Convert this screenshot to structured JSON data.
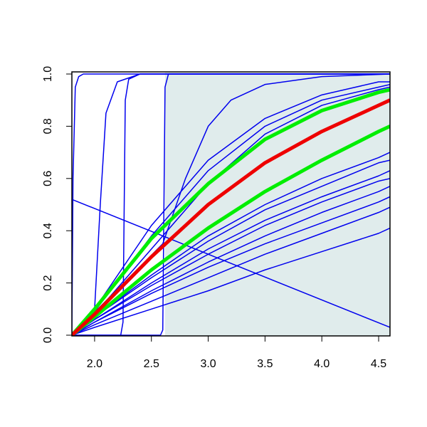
{
  "chart_data": {
    "type": "line",
    "xlim": [
      1.8,
      4.6
    ],
    "ylim": [
      0,
      1
    ],
    "xticks": [
      {
        "value": 2,
        "label": "2.0"
      },
      {
        "value": 2.5,
        "label": "2.5"
      },
      {
        "value": 3,
        "label": "3.0"
      },
      {
        "value": 3.5,
        "label": "3.5"
      },
      {
        "value": 4,
        "label": "4.0"
      },
      {
        "value": 4.5,
        "label": "4.5"
      }
    ],
    "yticks": [
      {
        "value": 0,
        "label": "0.0"
      },
      {
        "value": 0.2,
        "label": "0.2"
      },
      {
        "value": 0.4,
        "label": "0.4"
      },
      {
        "value": 0.6,
        "label": "0.6"
      },
      {
        "value": 0.8,
        "label": "0.8"
      },
      {
        "value": 1,
        "label": "1.0"
      }
    ],
    "shaded_region": [
      2.62,
      4.6
    ],
    "shade_color": "#e0ecec",
    "series": [
      {
        "color": "#0000ee",
        "width": 1.5,
        "x": [
          1.8,
          2.0,
          2.5,
          3.0,
          3.5,
          4.0,
          4.5,
          4.6
        ],
        "values": [
          0,
          0.06,
          0.2,
          0.33,
          0.44,
          0.53,
          0.61,
          0.63
        ]
      },
      {
        "color": "#0000ee",
        "width": 1.5,
        "x": [
          1.8,
          2.0,
          2.5,
          3.0,
          3.5,
          4.0,
          4.5,
          4.6
        ],
        "values": [
          0,
          0.05,
          0.17,
          0.28,
          0.38,
          0.47,
          0.55,
          0.57
        ]
      },
      {
        "color": "#0000ee",
        "width": 1.5,
        "x": [
          1.8,
          2.0,
          2.5,
          3.0,
          3.5,
          4.0,
          4.5,
          4.6
        ],
        "values": [
          0,
          0.05,
          0.16,
          0.26,
          0.35,
          0.43,
          0.51,
          0.53
        ]
      },
      {
        "color": "#0000ee",
        "width": 1.5,
        "x": [
          1.8,
          2.0,
          2.5,
          3.0,
          3.5,
          4.0,
          4.5,
          4.6
        ],
        "values": [
          0,
          0.06,
          0.19,
          0.31,
          0.42,
          0.51,
          0.59,
          0.6
        ]
      },
      {
        "color": "#0000ee",
        "width": 1.5,
        "x": [
          1.8,
          2.0,
          2.5,
          3.0,
          3.5,
          4.0,
          4.5,
          4.6
        ],
        "values": [
          0,
          0.07,
          0.22,
          0.36,
          0.48,
          0.57,
          0.66,
          0.67
        ]
      },
      {
        "color": "#0000ee",
        "width": 1.5,
        "x": [
          1.8,
          2.0,
          2.5,
          3.0,
          3.5,
          4.0,
          4.5,
          4.6
        ],
        "values": [
          0,
          0.07,
          0.23,
          0.38,
          0.5,
          0.6,
          0.68,
          0.7
        ]
      },
      {
        "color": "#0000ee",
        "width": 1.5,
        "x": [
          1.8,
          2.0,
          2.5,
          3.0,
          3.5,
          4.0,
          4.5,
          4.6
        ],
        "values": [
          0,
          0.03,
          0.1,
          0.17,
          0.25,
          0.32,
          0.39,
          0.41
        ]
      },
      {
        "color": "#0000ee",
        "width": 1.5,
        "x": [
          1.8,
          2.0,
          2.5,
          3.0,
          3.5,
          4.0,
          4.5,
          4.6
        ],
        "values": [
          0,
          0.04,
          0.13,
          0.22,
          0.31,
          0.39,
          0.47,
          0.49
        ]
      },
      {
        "color": "#0000ee",
        "width": 1.5,
        "x": [
          1.8,
          2.0,
          2.5,
          3.0,
          3.5,
          4.0,
          4.5,
          4.6
        ],
        "values": [
          0,
          0.1,
          0.42,
          0.67,
          0.83,
          0.92,
          0.97,
          0.97
        ]
      },
      {
        "color": "#0000ee",
        "width": 1.5,
        "x": [
          1.8,
          2.0,
          2.5,
          3.0,
          3.5,
          4.0,
          4.5,
          4.6
        ],
        "values": [
          0,
          0.09,
          0.38,
          0.63,
          0.8,
          0.9,
          0.95,
          0.96
        ]
      },
      {
        "color": "#0000ee",
        "width": 1.5,
        "x": [
          1.8,
          2.0,
          2.5,
          3.0,
          3.5,
          4.0,
          4.5,
          4.6
        ],
        "values": [
          0,
          0.08,
          0.33,
          0.58,
          0.77,
          0.88,
          0.94,
          0.95
        ]
      },
      {
        "color": "#0000ee",
        "width": 1.5,
        "x": [
          1.8,
          1.81,
          1.83,
          1.86,
          1.9,
          2.0,
          2.5,
          4.6
        ],
        "values": [
          0,
          0.6,
          0.95,
          0.99,
          1,
          1,
          1,
          1
        ]
      },
      {
        "color": "#0000ee",
        "width": 1.5,
        "x": [
          1.8,
          2.0,
          2.05,
          2.1,
          2.2,
          2.4,
          4.6
        ],
        "values": [
          0,
          0.1,
          0.5,
          0.85,
          0.97,
          1,
          1
        ]
      },
      {
        "color": "#0000ee",
        "width": 1.5,
        "x": [
          1.8,
          2.23,
          2.25,
          2.27,
          2.3,
          2.4,
          4.6
        ],
        "values": [
          0,
          0,
          0.05,
          0.9,
          0.98,
          1,
          1
        ]
      },
      {
        "color": "#0000ee",
        "width": 1.5,
        "x": [
          1.8,
          2.58,
          2.6,
          2.62,
          2.65,
          2.7,
          4.6
        ],
        "values": [
          0,
          0,
          0.02,
          0.95,
          1,
          1,
          1
        ]
      },
      {
        "color": "#0000ee",
        "width": 1.5,
        "x": [
          1.8,
          2.6,
          2.8,
          3.0,
          3.2,
          3.5,
          4.0,
          4.6
        ],
        "values": [
          0,
          0.35,
          0.6,
          0.8,
          0.9,
          0.96,
          0.99,
          1
        ]
      },
      {
        "color": "#0000ee",
        "width": 1.5,
        "x": [
          1.8,
          4.6
        ],
        "values": [
          0.52,
          0.03
        ]
      },
      {
        "color": "#00ee00",
        "width": 5,
        "x": [
          1.8,
          2.0,
          2.5,
          3.0,
          3.5,
          4.0,
          4.5,
          4.6
        ],
        "values": [
          0,
          0.1,
          0.37,
          0.58,
          0.75,
          0.86,
          0.93,
          0.94
        ]
      },
      {
        "color": "#00ee00",
        "width": 5,
        "x": [
          1.8,
          2.0,
          2.5,
          3.0,
          3.5,
          4.0,
          4.5,
          4.6
        ],
        "values": [
          0,
          0.07,
          0.25,
          0.41,
          0.55,
          0.67,
          0.78,
          0.8
        ]
      },
      {
        "color": "#ee0000",
        "width": 5,
        "x": [
          1.8,
          2.0,
          2.5,
          3.0,
          3.5,
          4.0,
          4.5,
          4.6
        ],
        "values": [
          0,
          0.08,
          0.3,
          0.5,
          0.66,
          0.78,
          0.88,
          0.9
        ]
      }
    ]
  }
}
